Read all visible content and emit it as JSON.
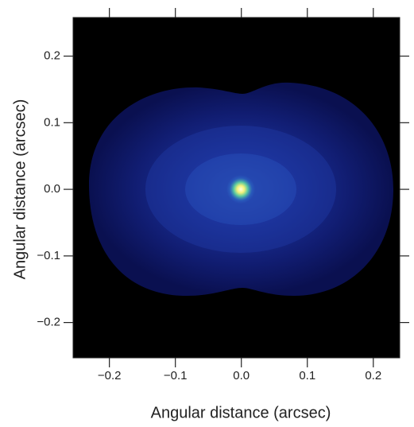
{
  "chart_data": {
    "type": "image",
    "xlabel": "Angular distance (arcsec)",
    "ylabel": "Angular distance (arcsec)",
    "xlim": [
      -0.255,
      0.24
    ],
    "ylim": [
      -0.253,
      0.258
    ],
    "xticks": [
      {
        "value": -0.2,
        "label": "−0.2"
      },
      {
        "value": -0.1,
        "label": "−0.1"
      },
      {
        "value": 0,
        "label": "0.0"
      },
      0.1,
      0.2
    ],
    "yticks": [
      {
        "value": -0.2,
        "label": "−0.2"
      },
      {
        "value": -0.1,
        "label": "−0.1"
      },
      {
        "value": 0,
        "label": "0.0"
      },
      0.1,
      0.2
    ]
  }
}
